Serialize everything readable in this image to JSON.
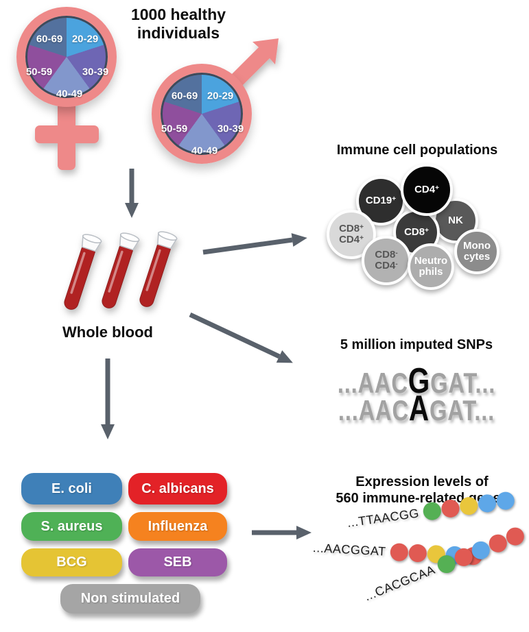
{
  "title_line1": "1000 healthy",
  "title_line2": "individuals",
  "demographics": {
    "age_groups": [
      "20-29",
      "30-39",
      "40-49",
      "50-59",
      "60-69"
    ],
    "slice_colors": {
      "20-29": "#4ba3de",
      "30-39": "#6e66b4",
      "40-49": "#8297cc",
      "50-59": "#8f4f9d",
      "60-69": "#53719e"
    },
    "symbol_color": "#ee8989"
  },
  "whole_blood": {
    "label": "Whole blood"
  },
  "immune": {
    "title": "Immune cell populations",
    "cells": [
      {
        "name": "CD19+",
        "base": "CD19",
        "sup": "+",
        "color": "#2e2e2e"
      },
      {
        "name": "CD4+",
        "base": "CD4",
        "sup": "+",
        "color": "#060606"
      },
      {
        "name": "NK",
        "base": "NK",
        "sup": "",
        "color": "#595959"
      },
      {
        "name": "CD8+",
        "base": "CD8",
        "sup": "+",
        "color": "#3b3b3b"
      },
      {
        "name": "CD8+CD4+",
        "line1_base": "CD8",
        "line1_sup": "+",
        "line2_base": "CD4",
        "line2_sup": "+",
        "color": "#d9d9d9"
      },
      {
        "name": "CD8-CD4-",
        "line1_base": "CD8",
        "line1_sup": "-",
        "line2_base": "CD4",
        "line2_sup": "-",
        "color": "#b2b2b2"
      },
      {
        "name": "Neutrophils",
        "line1": "Neutro",
        "line2": "phils",
        "color": "#adadad"
      },
      {
        "name": "Monocytes",
        "line1": "Mono",
        "line2": "cytes",
        "color": "#8c8c8c"
      }
    ]
  },
  "snps": {
    "title": "5 million imputed SNPs",
    "sequences": [
      {
        "pre": "...AAC",
        "variant": "G",
        "post": "GAT..."
      },
      {
        "pre": "...AAC",
        "variant": "A",
        "post": "GAT..."
      }
    ]
  },
  "stimuli": {
    "items": [
      {
        "label": "E. coli",
        "color": "#3f80b8"
      },
      {
        "label": "C. albicans",
        "color": "#e32227"
      },
      {
        "label": "S. aureus",
        "color": "#4fb156"
      },
      {
        "label": "Influenza",
        "color": "#f5821f"
      },
      {
        "label": "BCG",
        "color": "#e5c434"
      },
      {
        "label": "SEB",
        "color": "#9c58a8"
      },
      {
        "label": "Non stimulated",
        "color": "#a5a5a5"
      }
    ]
  },
  "expression": {
    "title_line1": "Expression levels of",
    "title_line2": "560 immune-related genes",
    "dot_colors": {
      "green": "#55b054",
      "red": "#e05a53",
      "yellow": "#e9c63c",
      "blue": "#5ea7e8"
    },
    "strands": [
      {
        "sequence": "...TTAACGG",
        "dots": [
          "green",
          "red",
          "yellow",
          "blue",
          "blue"
        ]
      },
      {
        "sequence": "...AACGGAT",
        "dots": [
          "red",
          "red",
          "yellow",
          "blue",
          "red"
        ]
      },
      {
        "sequence": "...CACGCAA",
        "dots": [
          "green",
          "red",
          "blue",
          "red",
          "red"
        ]
      }
    ]
  }
}
